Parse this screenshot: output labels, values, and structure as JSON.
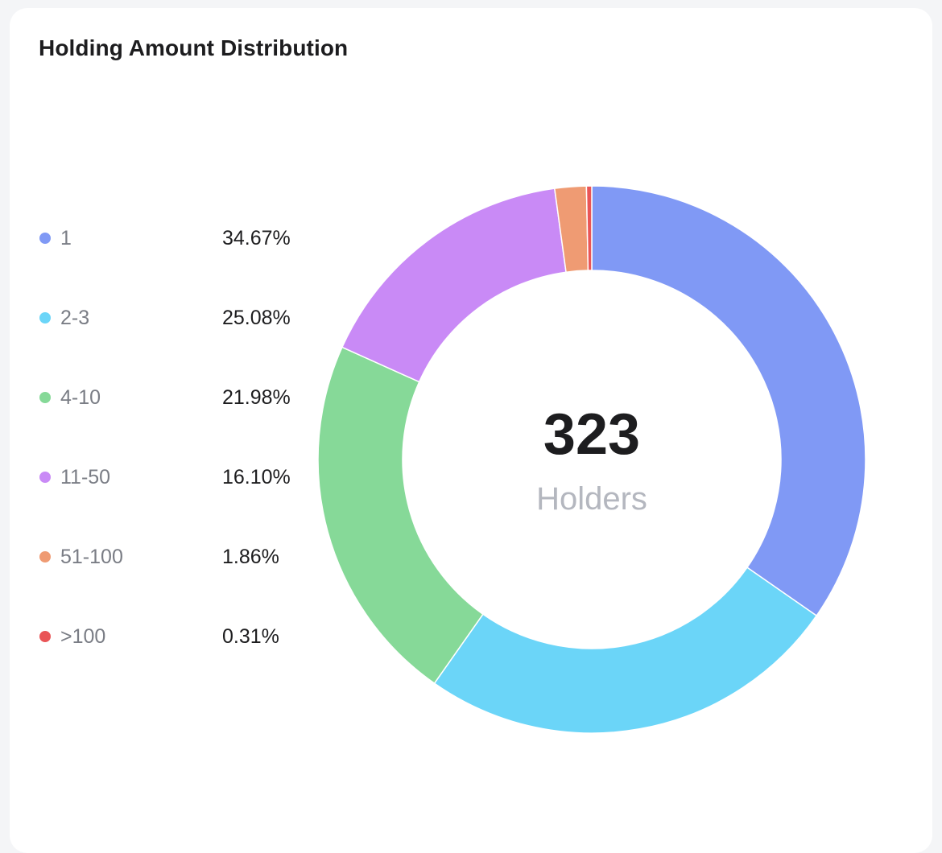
{
  "card": {
    "title": "Holding Amount Distribution"
  },
  "chart_data": {
    "type": "pie",
    "variant": "donut",
    "title": "Holding Amount Distribution",
    "center": {
      "value": "323",
      "label": "Holders"
    },
    "slices": [
      {
        "label": "1",
        "value": 34.67,
        "display": "34.67%",
        "color": "#8099f5"
      },
      {
        "label": "2-3",
        "value": 25.08,
        "display": "25.08%",
        "color": "#6bd5f8"
      },
      {
        "label": "4-10",
        "value": 21.98,
        "display": "21.98%",
        "color": "#86d998"
      },
      {
        "label": "11-50",
        "value": 16.1,
        "display": "16.10%",
        "color": "#c98af6"
      },
      {
        "label": "51-100",
        "value": 1.86,
        "display": "1.86%",
        "color": "#ef9b73"
      },
      {
        "label": ">100",
        "value": 0.31,
        "display": "0.31%",
        "color": "#e95557"
      }
    ],
    "legend": "left"
  }
}
